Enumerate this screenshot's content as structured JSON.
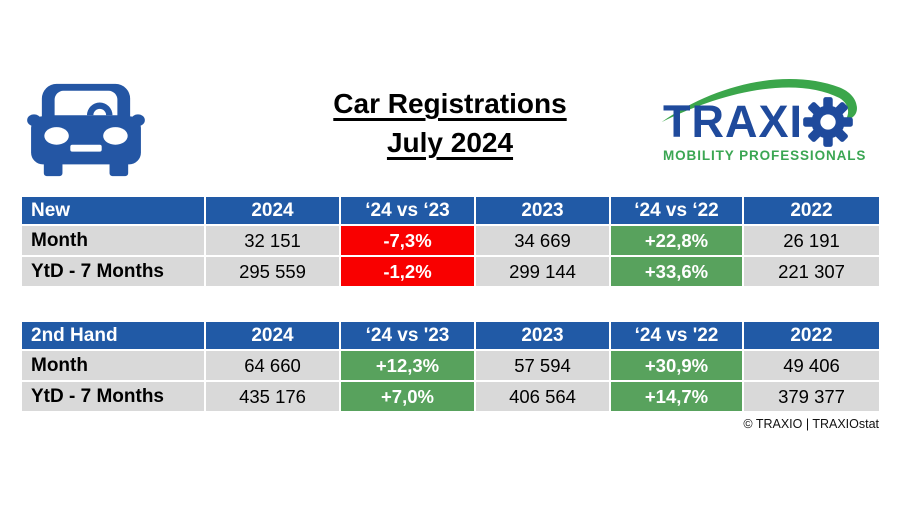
{
  "header": {
    "title_line1": "Car Registrations",
    "title_line2": "July 2024",
    "car_icon": "car-front-icon",
    "logo": {
      "brand_text": "TRAXI",
      "brand_o": "gear-icon",
      "tagline": "MOBILITY PROFESSIONALS"
    }
  },
  "tables": [
    {
      "title": "New",
      "columns": [
        "New",
        "2024",
        "‘24 vs ‘23",
        "2023",
        "‘24 vs ‘22",
        "2022"
      ],
      "rows": [
        {
          "label": "Month",
          "cells": [
            {
              "text": "32 151",
              "style": "plain"
            },
            {
              "text": "-7,3%",
              "style": "negative"
            },
            {
              "text": "34 669",
              "style": "plain"
            },
            {
              "text": "+22,8%",
              "style": "positive"
            },
            {
              "text": "26 191",
              "style": "plain"
            }
          ]
        },
        {
          "label": "YtD - 7 Months",
          "cells": [
            {
              "text": "295 559",
              "style": "plain"
            },
            {
              "text": "-1,2%",
              "style": "negative"
            },
            {
              "text": "299 144",
              "style": "plain"
            },
            {
              "text": "+33,6%",
              "style": "positive"
            },
            {
              "text": "221 307",
              "style": "plain"
            }
          ]
        }
      ]
    },
    {
      "title": "2nd Hand",
      "columns": [
        "2nd Hand",
        "2024",
        "‘24 vs '23",
        "2023",
        "‘24 vs '22",
        "2022"
      ],
      "rows": [
        {
          "label": "Month",
          "cells": [
            {
              "text": "64 660",
              "style": "plain"
            },
            {
              "text": "+12,3%",
              "style": "positive"
            },
            {
              "text": "57 594",
              "style": "plain"
            },
            {
              "text": "+30,9%",
              "style": "positive"
            },
            {
              "text": "49 406",
              "style": "plain"
            }
          ]
        },
        {
          "label": "YtD - 7 Months",
          "cells": [
            {
              "text": "435 176",
              "style": "plain"
            },
            {
              "text": "+7,0%",
              "style": "positive"
            },
            {
              "text": "406 564",
              "style": "plain"
            },
            {
              "text": "+14,7%",
              "style": "positive"
            },
            {
              "text": "379 377",
              "style": "plain"
            }
          ]
        }
      ]
    }
  ],
  "footer": {
    "credit": "© TRAXIO | TRAXIOstat"
  },
  "colors": {
    "header_blue": "#215AA6",
    "cell_gray": "#D9D9D9",
    "negative_red": "#F90000",
    "positive_green": "#58A25D",
    "car_blue": "#2456A4",
    "logo_blue": "#1F4A9C",
    "logo_green": "#3BA653",
    "text": "#000000"
  },
  "chart_data": [
    {
      "type": "table",
      "title": "New car registrations - July 2024",
      "columns": [
        "New",
        "2024",
        "‘24 vs ‘23",
        "2023",
        "‘24 vs ‘22",
        "2022"
      ],
      "rows": [
        [
          "Month",
          "32 151",
          "-7,3%",
          "34 669",
          "+22,8%",
          "26 191"
        ],
        [
          "YtD - 7 Months",
          "295 559",
          "-1,2%",
          "299 144",
          "+33,6%",
          "221 307"
        ]
      ]
    },
    {
      "type": "table",
      "title": "2nd Hand car registrations - July 2024",
      "columns": [
        "2nd Hand",
        "2024",
        "‘24 vs '23",
        "2023",
        "‘24 vs '22",
        "2022"
      ],
      "rows": [
        [
          "Month",
          "64 660",
          "+12,3%",
          "57 594",
          "+30,9%",
          "49 406"
        ],
        [
          "YtD - 7 Months",
          "435 176",
          "+7,0%",
          "406 564",
          "+14,7%",
          "379 377"
        ]
      ]
    }
  ]
}
